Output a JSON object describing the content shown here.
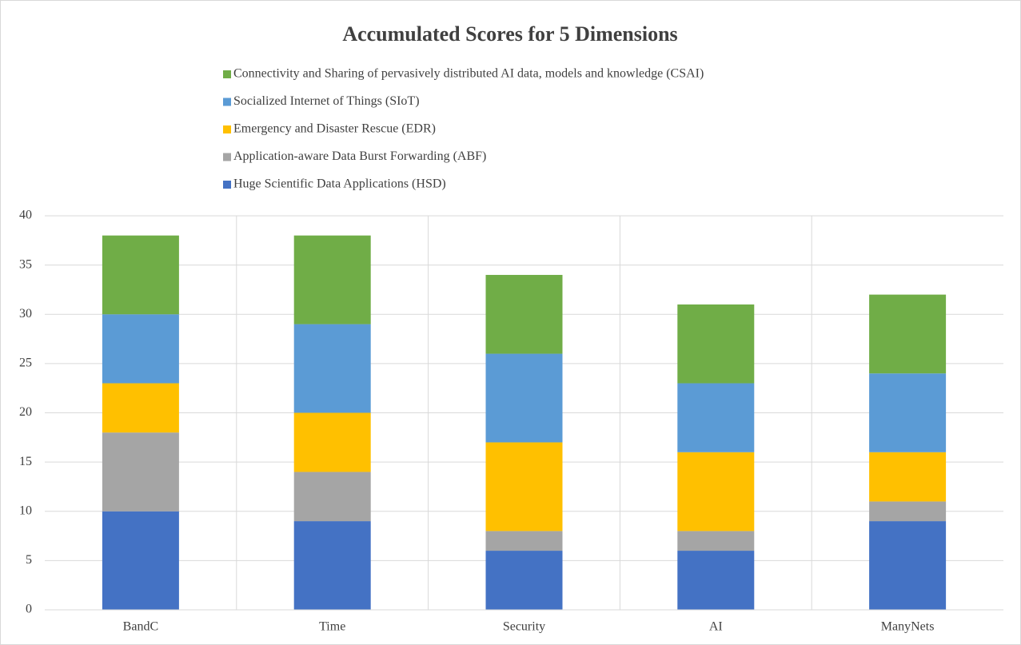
{
  "chart_data": {
    "type": "stacked_bar",
    "title": "Accumulated Scores for 5 Dimensions",
    "categories": [
      "BandC",
      "Time",
      "Security",
      "AI",
      "ManyNets"
    ],
    "series": [
      {
        "name": "Huge Scientific Data Applications (HSD)",
        "color": "#4472c4",
        "values": [
          10,
          9,
          6,
          6,
          9
        ]
      },
      {
        "name": "Application-aware Data Burst Forwarding (ABF)",
        "color": "#a5a5a5",
        "values": [
          8,
          5,
          2,
          2,
          2
        ]
      },
      {
        "name": "Emergency and Disaster Rescue (EDR)",
        "color": "#ffc000",
        "values": [
          5,
          6,
          9,
          8,
          5
        ]
      },
      {
        "name": "Socialized Internet of Things (SIoT)",
        "color": "#5b9bd5",
        "values": [
          7,
          9,
          9,
          7,
          8
        ]
      },
      {
        "name": "Connectivity and Sharing of pervasively distributed AI data, models and knowledge (CSAI)",
        "color": "#70ad47",
        "values": [
          8,
          9,
          8,
          8,
          8
        ]
      }
    ],
    "ylim": [
      0,
      40
    ],
    "yticks": [
      0,
      5,
      10,
      15,
      20,
      25,
      30,
      35,
      40
    ],
    "grid": true,
    "legend": "top"
  }
}
